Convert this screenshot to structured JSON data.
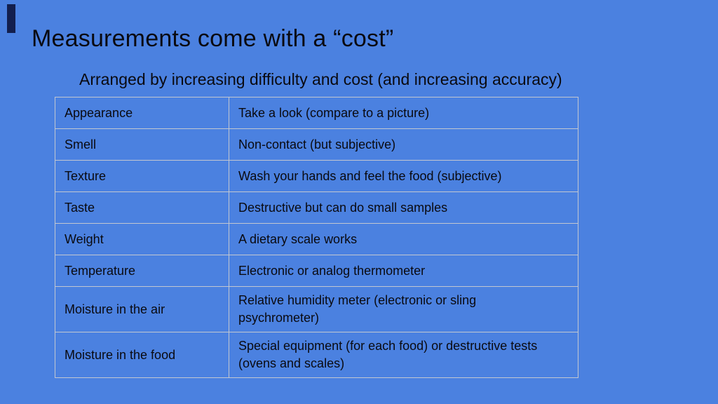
{
  "slide": {
    "title": "Measurements come with a “cost”",
    "subtitle": "Arranged by increasing difficulty and cost (and increasing accuracy)",
    "colors": {
      "background": "#4b81e0",
      "accent_bar": "#131f4e",
      "table_border": "#c2c7d0",
      "text": "#0a0a10"
    },
    "table": {
      "rows": [
        {
          "property": "Appearance",
          "desc_lines": [
            "Take a look (compare to a picture)"
          ]
        },
        {
          "property": "Smell",
          "desc_lines": [
            "Non-contact (but subjective)"
          ]
        },
        {
          "property": "Texture",
          "desc_lines": [
            "Wash your hands and feel the food (subjective)"
          ]
        },
        {
          "property": "Taste",
          "desc_lines": [
            "Destructive but can do small samples"
          ]
        },
        {
          "property": "Weight",
          "desc_lines": [
            "A dietary scale works"
          ]
        },
        {
          "property": "Temperature",
          "desc_lines": [
            "Electronic or analog thermometer"
          ]
        },
        {
          "property": "Moisture in the air",
          "desc_lines": [
            "Relative humidity meter (electronic or sling",
            "psychrometer)"
          ]
        },
        {
          "property": "Moisture in the food",
          "desc_lines": [
            "Special equipment (for each food) or destructive tests",
            "(ovens and scales)"
          ]
        }
      ]
    }
  }
}
